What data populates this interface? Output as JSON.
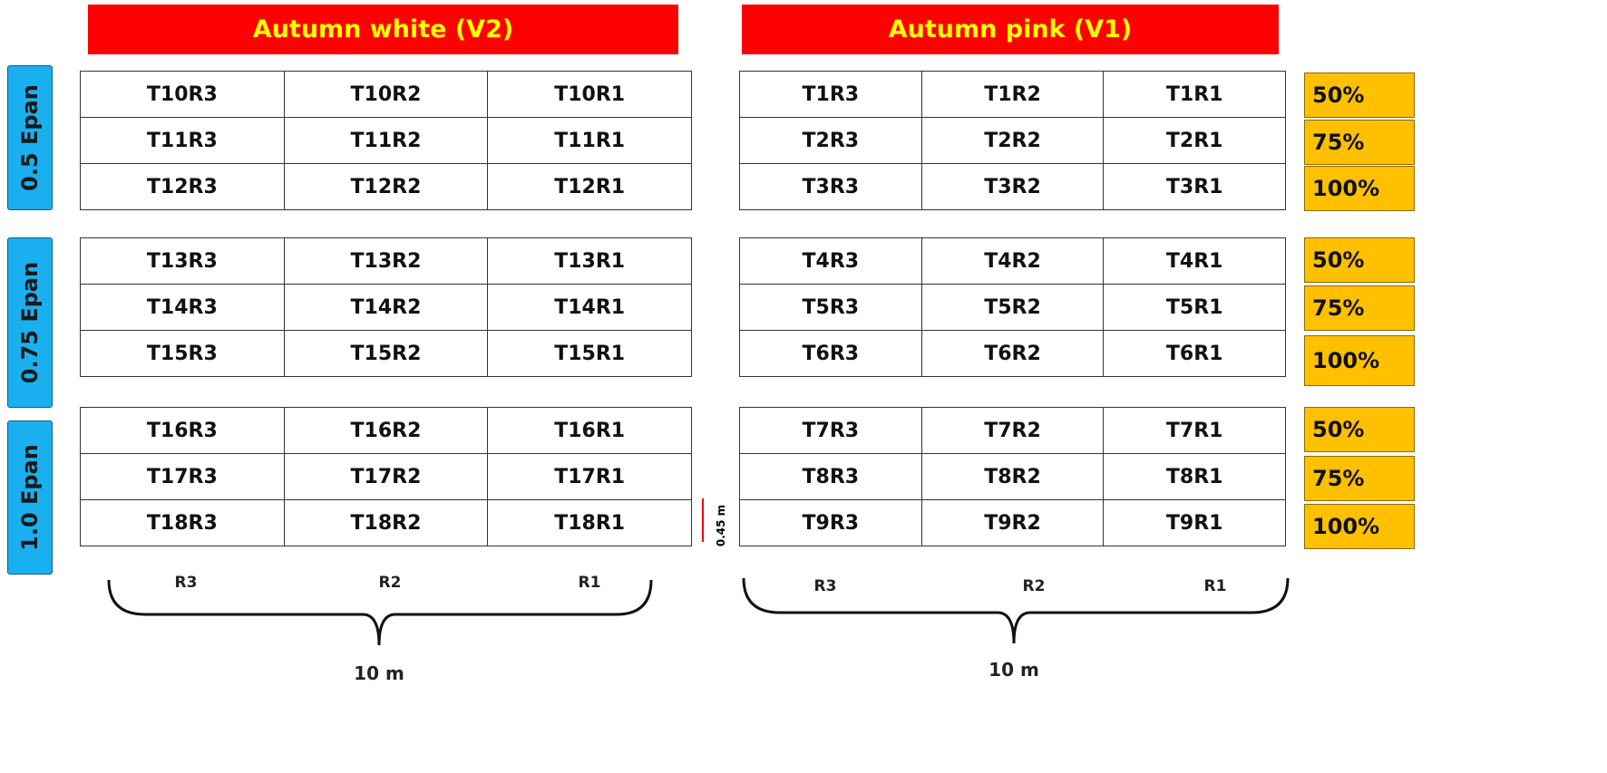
{
  "variety_headers": [
    "Autumn white (V2)",
    "Autumn pink (V1)"
  ],
  "epan_levels": [
    "0.5 Epan",
    "0.75 Epan",
    "1.0 Epan"
  ],
  "plots": {
    "left": [
      [
        [
          "T10R3",
          "T10R2",
          "T10R1"
        ],
        [
          "T11R3",
          "T11R2",
          "T11R1"
        ],
        [
          "T12R3",
          "T12R2",
          "T12R1"
        ]
      ],
      [
        [
          "T13R3",
          "T13R2",
          "T13R1"
        ],
        [
          "T14R3",
          "T14R2",
          "T14R1"
        ],
        [
          "T15R3",
          "T15R2",
          "T15R1"
        ]
      ],
      [
        [
          "T16R3",
          "T16R2",
          "T16R1"
        ],
        [
          "T17R3",
          "T17R2",
          "T17R1"
        ],
        [
          "T18R3",
          "T18R2",
          "T18R1"
        ]
      ]
    ],
    "right": [
      [
        [
          "T1R3",
          "T1R2",
          "T1R1"
        ],
        [
          "T2R3",
          "T2R2",
          "T2R1"
        ],
        [
          "T3R3",
          "T3R2",
          "T3R1"
        ]
      ],
      [
        [
          "T4R3",
          "T4R2",
          "T4R1"
        ],
        [
          "T5R3",
          "T5R2",
          "T5R1"
        ],
        [
          "T6R3",
          "T6R2",
          "T6R1"
        ]
      ],
      [
        [
          "T7R3",
          "T7R2",
          "T7R1"
        ],
        [
          "T8R3",
          "T8R2",
          "T8R1"
        ],
        [
          "T9R3",
          "T9R2",
          "T9R1"
        ]
      ]
    ]
  },
  "irrigation_levels": [
    [
      "50%",
      "75%",
      "100%"
    ],
    [
      "50%",
      "75%",
      "100%"
    ],
    [
      "50%",
      "75%",
      "100%"
    ]
  ],
  "replications": [
    [
      "R3",
      "R2",
      "R1"
    ],
    [
      "R3",
      "R2",
      "R1"
    ]
  ],
  "width_labels": [
    "10 m",
    "10 m"
  ],
  "row_width_label": "0.45 m"
}
